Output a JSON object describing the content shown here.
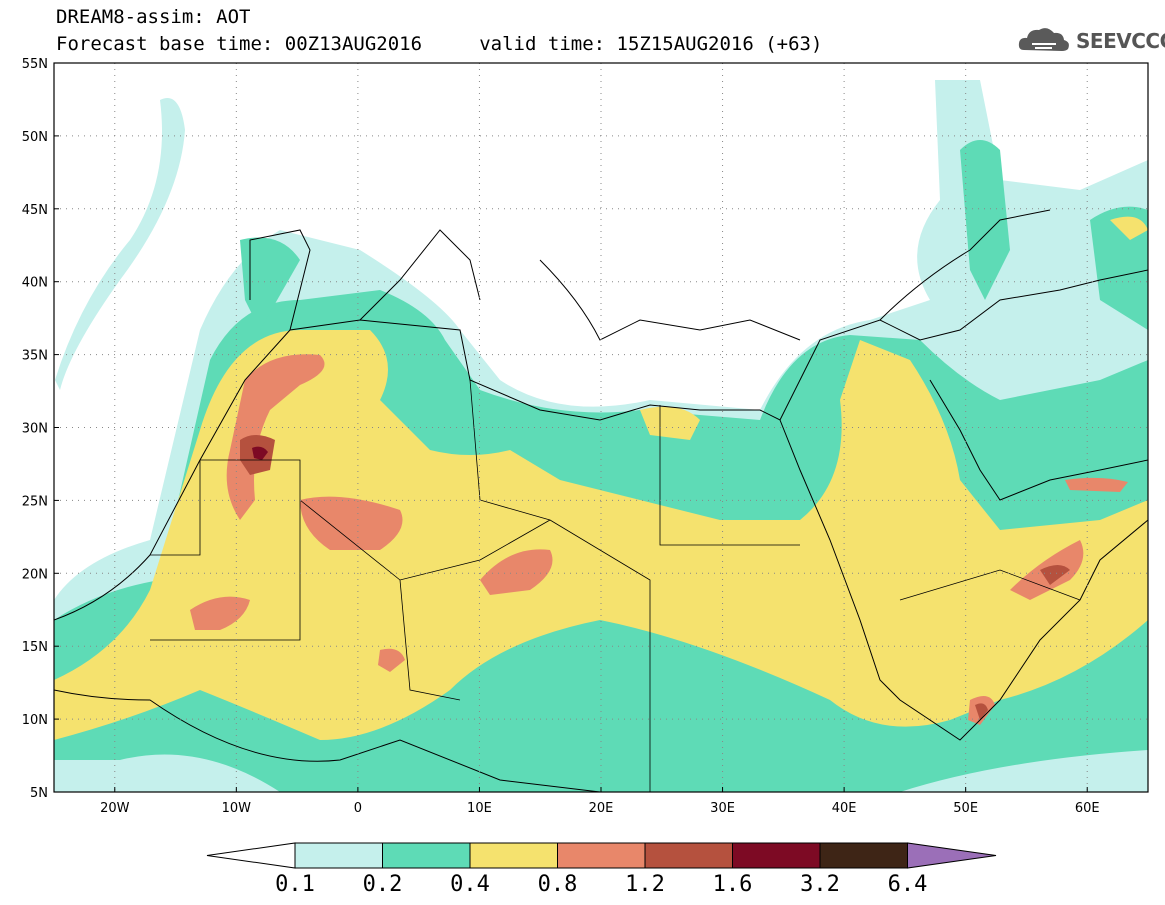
{
  "title": {
    "line1": "DREAM8-assim: AOT",
    "line2": "Forecast base time: 00Z13AUG2016     valid time: 15Z15AUG2016 (+63)"
  },
  "logo": {
    "text": "SEEVCCC",
    "icon": "cloud-icon",
    "color": "#555555"
  },
  "map": {
    "lon_range": [
      -25,
      65
    ],
    "lat_range": [
      5,
      55
    ],
    "lat_ticks": [
      "55N",
      "50N",
      "45N",
      "40N",
      "35N",
      "30N",
      "25N",
      "20N",
      "15N",
      "10N",
      "5N"
    ],
    "lon_ticks": [
      "20W",
      "10W",
      "0",
      "10E",
      "20E",
      "30E",
      "40E",
      "50E",
      "60E"
    ],
    "grid": true
  },
  "colorbar": {
    "labels": [
      "0.1",
      "0.2",
      "0.4",
      "0.8",
      "1.2",
      "1.6",
      "3.2",
      "6.4"
    ],
    "colors": [
      "#c5f0ec",
      "#5edbb6",
      "#f5e26e",
      "#e8876a",
      "#b5513e",
      "#7d0a24",
      "#3e2516",
      "#9b6fb8"
    ],
    "under_color": "#ffffff"
  }
}
